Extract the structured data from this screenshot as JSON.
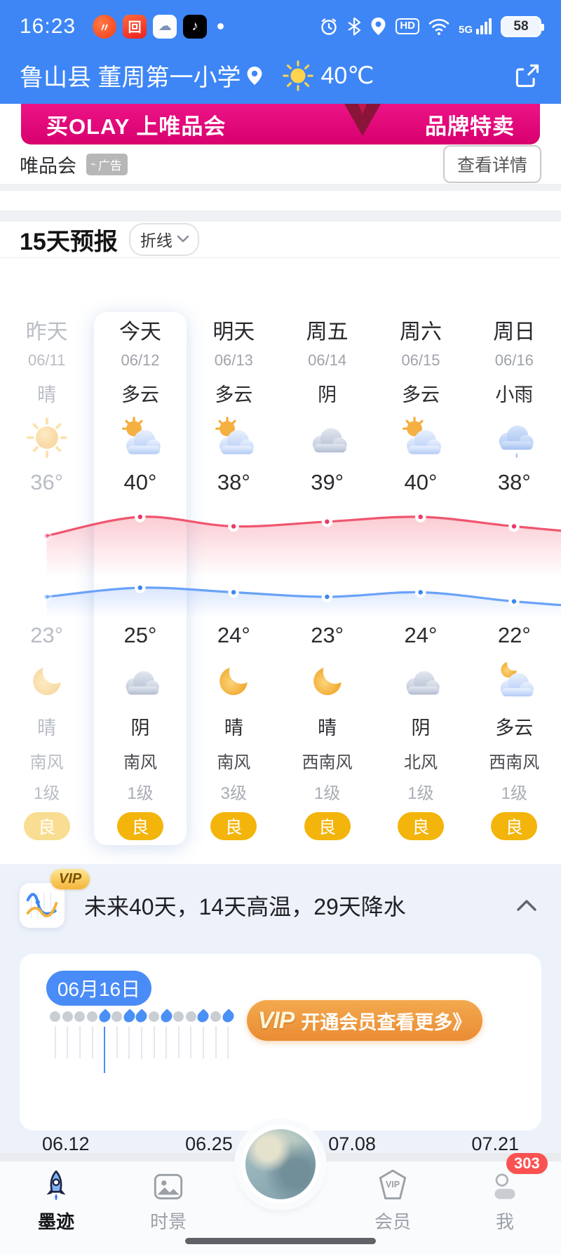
{
  "status_bar": {
    "time": "16:23",
    "battery_level": "58",
    "network": "5G",
    "hd_label": "HD",
    "app_icons": [
      "news-app-icon",
      "video-app-icon",
      "weather-app-icon",
      "douyin-app-icon"
    ],
    "right_icons": [
      "alarm",
      "bluetooth",
      "location",
      "hd",
      "wifi",
      "signal-5g",
      "battery"
    ]
  },
  "header": {
    "location": "鲁山县 董周第一小学",
    "weather_icon": "sun",
    "temperature": "40℃"
  },
  "ad": {
    "banner_left": "买OLAY 上唯品会",
    "banner_right": "品牌特卖",
    "brand": "唯品会",
    "ad_badge": "广告",
    "detail_button": "查看详情"
  },
  "forecast": {
    "title": "15天预报",
    "view_mode": "折线",
    "days": [
      {
        "name": "昨天",
        "date": "06/11",
        "day_cond": "晴",
        "day_icon": "sun",
        "high": "36",
        "low": "23",
        "night_icon": "moon",
        "night_cond": "晴",
        "wind": "南风",
        "level": "1级",
        "aqi": "良",
        "faded": true,
        "active": false
      },
      {
        "name": "今天",
        "date": "06/12",
        "day_cond": "多云",
        "day_icon": "sun-cloud",
        "high": "40",
        "low": "25",
        "night_icon": "cloud",
        "night_cond": "阴",
        "wind": "南风",
        "level": "1级",
        "aqi": "良",
        "faded": false,
        "active": true
      },
      {
        "name": "明天",
        "date": "06/13",
        "day_cond": "多云",
        "day_icon": "sun-cloud",
        "high": "38",
        "low": "24",
        "night_icon": "moon",
        "night_cond": "晴",
        "wind": "南风",
        "level": "3级",
        "aqi": "良",
        "faded": false,
        "active": false
      },
      {
        "name": "周五",
        "date": "06/14",
        "day_cond": "阴",
        "day_icon": "cloud",
        "high": "39",
        "low": "23",
        "night_icon": "moon",
        "night_cond": "晴",
        "wind": "西南风",
        "level": "1级",
        "aqi": "良",
        "faded": false,
        "active": false
      },
      {
        "name": "周六",
        "date": "06/15",
        "day_cond": "多云",
        "day_icon": "sun-cloud",
        "high": "40",
        "low": "24",
        "night_icon": "cloud",
        "night_cond": "阴",
        "wind": "北风",
        "level": "1级",
        "aqi": "良",
        "faded": false,
        "active": false
      },
      {
        "name": "周日",
        "date": "06/16",
        "day_cond": "小雨",
        "day_icon": "rain",
        "high": "38",
        "low": "22",
        "night_icon": "moon-cloud",
        "night_cond": "多云",
        "wind": "西南风",
        "level": "1级",
        "aqi": "良",
        "faded": false,
        "active": false
      }
    ]
  },
  "chart_data": {
    "type": "line",
    "categories": [
      "06/11",
      "06/12",
      "06/13",
      "06/14",
      "06/15",
      "06/16"
    ],
    "series": [
      {
        "name": "day-high",
        "color": "#f0556e",
        "values": [
          36,
          40,
          38,
          39,
          40,
          38
        ]
      },
      {
        "name": "night-low",
        "color": "#6aa2f8",
        "values": [
          23,
          25,
          24,
          23,
          24,
          22
        ]
      }
    ],
    "unit": "°",
    "legend": "none",
    "grid": false
  },
  "vip40": {
    "badge": "VIP",
    "summary": "未来40天，14天高温，29天降水",
    "selected_date": "06月16日",
    "cta_vip": "VIP",
    "cta_text": "开通会员查看更多",
    "cta_arrow": "》",
    "axis_labels": [
      "06.12",
      "06.25",
      "07.08",
      "07.21"
    ],
    "dot_pattern": [
      "g",
      "g",
      "g",
      "g",
      "b",
      "g",
      "b",
      "b",
      "g",
      "b",
      "g",
      "g",
      "b",
      "g",
      "b"
    ],
    "selected_index": 4
  },
  "nav": {
    "items": [
      {
        "label": "墨迹",
        "icon": "rocket",
        "active": true
      },
      {
        "label": "时景",
        "icon": "photo",
        "active": false
      },
      {
        "label": "会员",
        "icon": "vip-diamond",
        "active": false
      },
      {
        "label": "我",
        "icon": "person",
        "active": false
      }
    ],
    "badge_count": "303"
  }
}
